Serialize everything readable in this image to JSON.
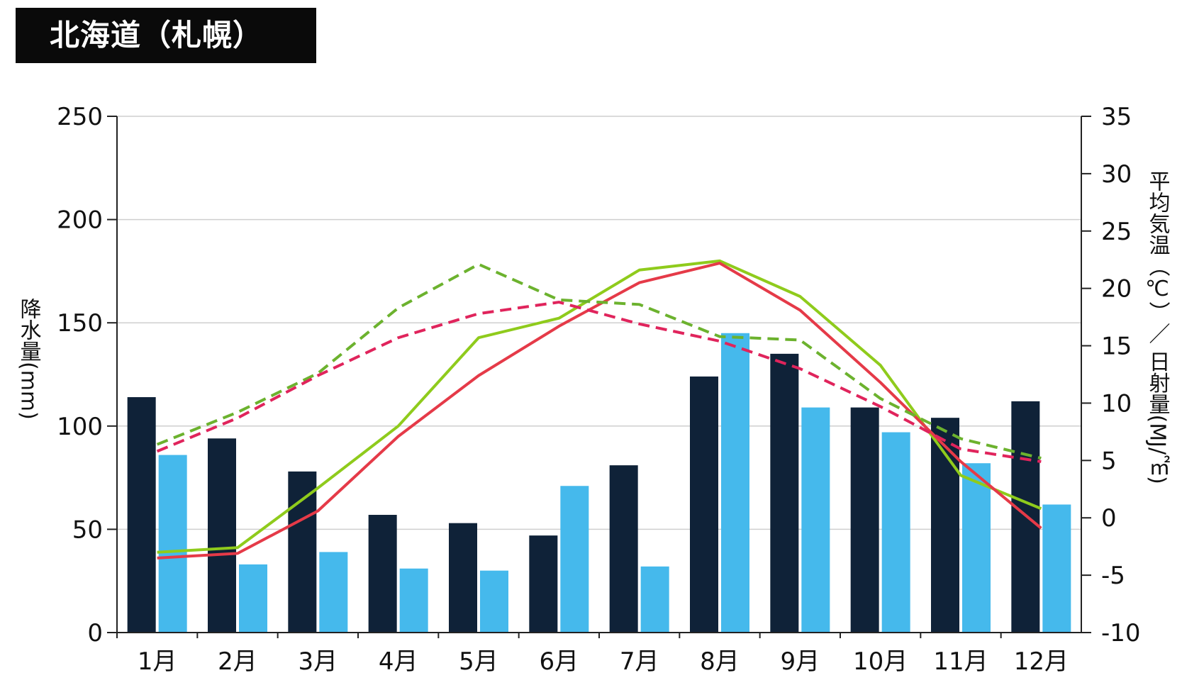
{
  "title": "北海道（札幌）",
  "chart_data": {
    "type": "bar+line",
    "title": "北海道（札幌）",
    "categories": [
      "1月",
      "2月",
      "3月",
      "4月",
      "5月",
      "6月",
      "7月",
      "8月",
      "9月",
      "10月",
      "11月",
      "12月"
    ],
    "left_axis": {
      "label": "降水量(mm)",
      "min": 0,
      "max": 250,
      "ticks": [
        0,
        50,
        100,
        150,
        200,
        250
      ]
    },
    "right_axis": {
      "label": "平均気温（℃）／ 日射量(MJ/㎡)",
      "min": -10,
      "max": 35,
      "ticks": [
        -10,
        -5,
        0,
        5,
        10,
        15,
        20,
        25,
        30,
        35
      ]
    },
    "grid": true,
    "bar_series": [
      {
        "color": "#0f2238",
        "axis": "left",
        "values": [
          114,
          94,
          78,
          57,
          53,
          47,
          81,
          124,
          135,
          109,
          104,
          112
        ]
      },
      {
        "color": "#45b9ec",
        "axis": "left",
        "values": [
          86,
          33,
          39,
          31,
          30,
          71,
          32,
          145,
          109,
          97,
          82,
          62
        ]
      }
    ],
    "line_series": [
      {
        "color": "#8fcb1c",
        "style": "solid",
        "axis": "right",
        "values": [
          -3.0,
          -2.6,
          2.6,
          8.0,
          15.7,
          17.4,
          21.6,
          22.4,
          19.3,
          13.3,
          3.7,
          0.8
        ]
      },
      {
        "color": "#e53a48",
        "style": "solid",
        "axis": "right",
        "values": [
          -3.5,
          -3.1,
          0.6,
          7.1,
          12.4,
          16.7,
          20.5,
          22.2,
          18.1,
          11.8,
          4.9,
          -0.9
        ]
      },
      {
        "color": "#6cb22e",
        "style": "dashed",
        "axis": "right",
        "values": [
          6.4,
          9.2,
          12.6,
          18.3,
          22.1,
          19.0,
          18.6,
          15.8,
          15.5,
          10.4,
          6.9,
          5.2
        ]
      },
      {
        "color": "#e0245c",
        "style": "dashed",
        "axis": "right",
        "values": [
          5.8,
          8.7,
          12.4,
          15.7,
          17.8,
          18.8,
          16.9,
          15.4,
          13.0,
          9.7,
          6.0,
          4.9
        ]
      }
    ]
  }
}
